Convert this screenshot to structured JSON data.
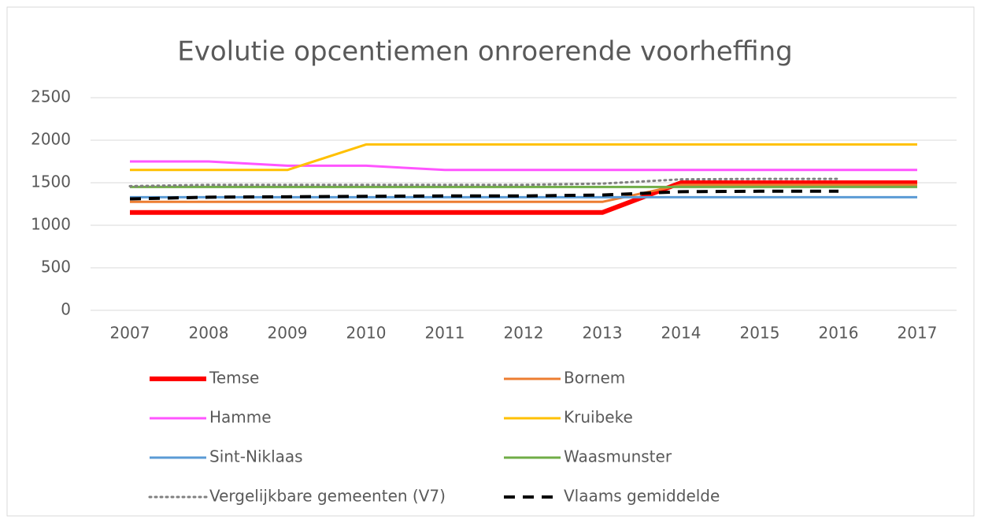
{
  "chart_data": {
    "type": "line",
    "title": "Evolutie opcentiemen onroerende voorheffing",
    "categories": [
      "2007",
      "2008",
      "2009",
      "2010",
      "2011",
      "2012",
      "2013",
      "2014",
      "2015",
      "2016",
      "2017"
    ],
    "ylim": [
      0,
      2500
    ],
    "yticks": [
      0,
      500,
      1000,
      1500,
      2000,
      2500
    ],
    "grid": true,
    "legend": "bottom",
    "series": [
      {
        "name": "Temse",
        "color": "#ff0000",
        "width": 6,
        "dash": "solid",
        "values": [
          1150,
          1150,
          1150,
          1150,
          1150,
          1150,
          1150,
          1500,
          1500,
          1500,
          1500
        ]
      },
      {
        "name": "Bornem",
        "color": "#ed7d31",
        "width": 3,
        "dash": "solid",
        "values": [
          1275,
          1275,
          1275,
          1275,
          1275,
          1275,
          1275,
          1475,
          1475,
          1475,
          1475
        ]
      },
      {
        "name": "Hamme",
        "color": "#ff55ff",
        "width": 3,
        "dash": "solid",
        "values": [
          1750,
          1750,
          1700,
          1700,
          1650,
          1650,
          1650,
          1650,
          1650,
          1650,
          1650
        ]
      },
      {
        "name": "Kruibeke",
        "color": "#ffc000",
        "width": 3,
        "dash": "solid",
        "values": [
          1650,
          1650,
          1650,
          1950,
          1950,
          1950,
          1950,
          1950,
          1950,
          1950,
          1950
        ]
      },
      {
        "name": "Sint-Niklaas",
        "color": "#5b9bd5",
        "width": 3,
        "dash": "solid",
        "values": [
          1330,
          1330,
          1330,
          1330,
          1330,
          1330,
          1330,
          1330,
          1330,
          1330,
          1330
        ]
      },
      {
        "name": "Waasmunster",
        "color": "#70ad47",
        "width": 3,
        "dash": "solid",
        "values": [
          1450,
          1450,
          1450,
          1450,
          1450,
          1450,
          1450,
          1450,
          1450,
          1450,
          1450
        ]
      },
      {
        "name": "Vergelijkbare gemeenten (V7)",
        "color": "#808080",
        "width": 3,
        "dash": "dotted",
        "values": [
          1460,
          1475,
          1475,
          1475,
          1475,
          1475,
          1490,
          1540,
          1545,
          1545,
          null
        ]
      },
      {
        "name": "Vlaams gemiddelde",
        "color": "#000000",
        "width": 4,
        "dash": "dashed",
        "values": [
          1310,
          1330,
          1335,
          1340,
          1345,
          1345,
          1355,
          1395,
          1400,
          1400,
          null
        ]
      }
    ]
  }
}
